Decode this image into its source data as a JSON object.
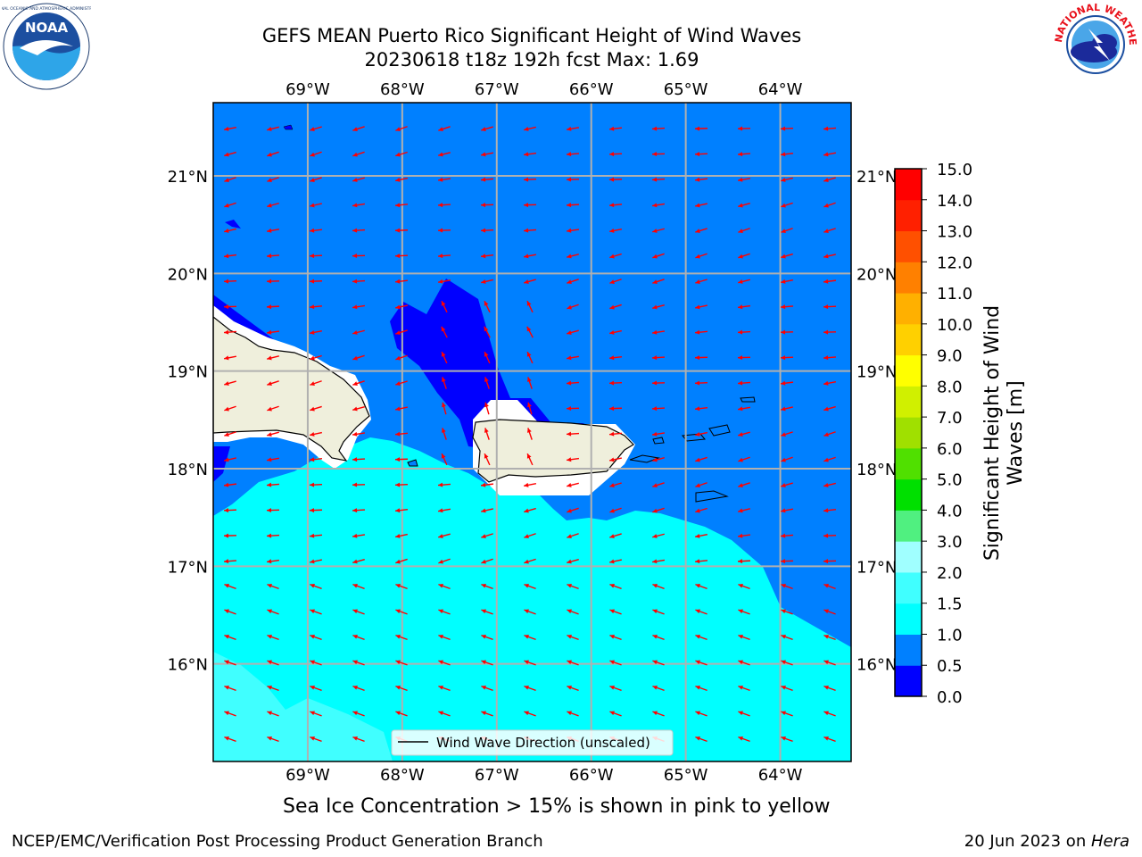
{
  "header": {
    "title_line1": "GEFS MEAN Puerto Rico Significant Height of Wind Waves",
    "title_line2": "20230618 t18z 192h fcst   Max: 1.69"
  },
  "logos": {
    "left": {
      "icon": "noaa-logo-icon",
      "text": "NOAA"
    },
    "right": {
      "icon": "nws-logo-icon",
      "text": "NATIONAL WEATHER SERVICE"
    }
  },
  "map": {
    "lon_labels": [
      "69°W",
      "68°W",
      "67°W",
      "66°W",
      "65°W",
      "64°W"
    ],
    "lon_values": [
      -69,
      -68,
      -67,
      -66,
      -65,
      -64
    ],
    "lat_labels": [
      "21°N",
      "20°N",
      "19°N",
      "18°N",
      "17°N",
      "16°N"
    ],
    "lat_values": [
      21,
      20,
      19,
      18,
      17,
      16
    ],
    "extent": {
      "lon_min": -70.0,
      "lon_max": -63.25,
      "lat_min": 15.0,
      "lat_max": 21.75
    },
    "legend_label": "Wind Wave Direction (unscaled)",
    "arrow_color": "#ff0000",
    "land_color": "#efefdc",
    "ice_note": "Sea Ice Concentration > 15% is shown in pink to yellow"
  },
  "colorbar": {
    "label": "Significant Height of Wind Waves [m]",
    "ticks": [
      "0.0",
      "0.5",
      "1.0",
      "1.5",
      "2.0",
      "3.0",
      "4.0",
      "5.0",
      "6.0",
      "7.0",
      "8.0",
      "9.0",
      "10.0",
      "11.0",
      "12.0",
      "13.0",
      "14.0",
      "15.0"
    ],
    "colors": [
      "#0000ff",
      "#0080ff",
      "#00ffff",
      "#40ffff",
      "#a0ffff",
      "#50f080",
      "#00e000",
      "#50e000",
      "#a0e000",
      "#d0f000",
      "#ffff00",
      "#ffd000",
      "#ffb000",
      "#ff8000",
      "#ff5000",
      "#ff2000",
      "#ff0000"
    ]
  },
  "footer": {
    "left": "NCEP/EMC/Verification Post Processing Product Generation Branch",
    "right_date": "20 Jun 2023 on ",
    "right_host": "Hera"
  }
}
